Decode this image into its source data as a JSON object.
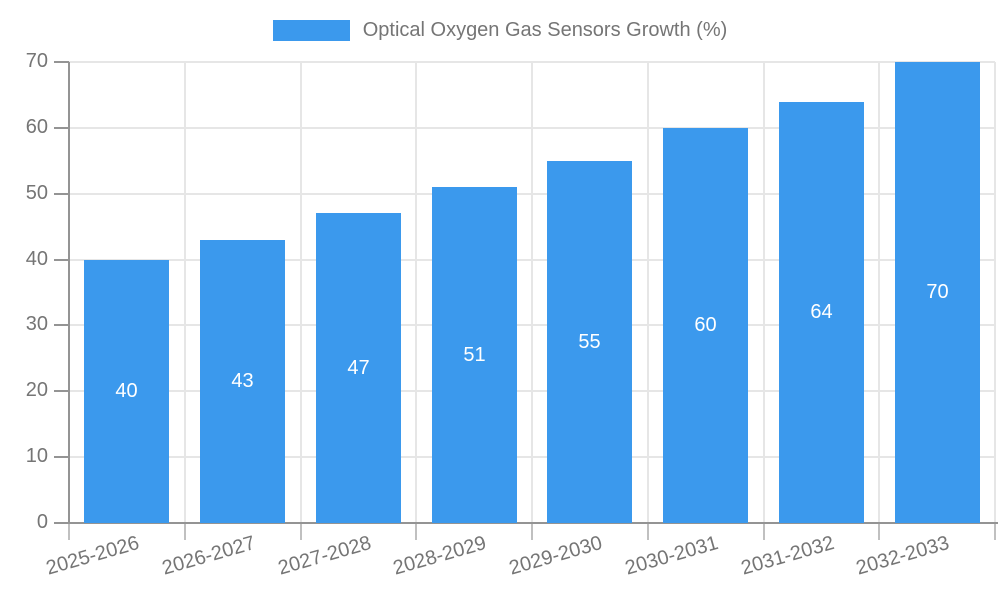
{
  "legend": {
    "label": "Optical Oxygen Gas Sensors Growth (%)"
  },
  "chart_data": {
    "type": "bar",
    "title": "Optical Oxygen Gas Sensors Growth (%)",
    "categories": [
      "2025-2026",
      "2026-2027",
      "2027-2028",
      "2028-2029",
      "2029-2030",
      "2030-2031",
      "2031-2032",
      "2032-2033"
    ],
    "values": [
      40,
      43,
      47,
      51,
      55,
      60,
      64,
      70
    ],
    "xlabel": "",
    "ylabel": "",
    "ylim": [
      0,
      70
    ],
    "yticks": [
      0,
      10,
      20,
      30,
      40,
      50,
      60,
      70
    ],
    "grid": true,
    "legend_position": "top-center",
    "bar_color": "#3B99ED",
    "value_label_color": "#ffffff",
    "axis_text_color": "#757575",
    "grid_color": "#e6e6e6",
    "axis_line_color": "#949494",
    "tick_color": "#c0c0c0",
    "background_color": "#ffffff"
  }
}
